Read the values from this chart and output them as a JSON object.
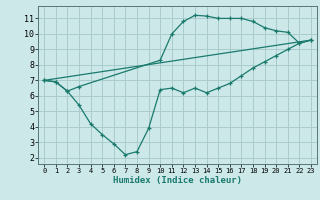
{
  "xlabel": "Humidex (Indice chaleur)",
  "bg_color": "#cce8e8",
  "grid_color": "#aacccc",
  "line_color": "#1a7a6e",
  "xlim": [
    -0.5,
    23.5
  ],
  "ylim": [
    1.6,
    11.8
  ],
  "xticks": [
    0,
    1,
    2,
    3,
    4,
    5,
    6,
    7,
    8,
    9,
    10,
    11,
    12,
    13,
    14,
    15,
    16,
    17,
    18,
    19,
    20,
    21,
    22,
    23
  ],
  "yticks": [
    2,
    3,
    4,
    5,
    6,
    7,
    8,
    9,
    10,
    11
  ],
  "line1_x": [
    0,
    1,
    2,
    3,
    10,
    11,
    12,
    13,
    14,
    15,
    16,
    17,
    18,
    19,
    20,
    21,
    22,
    23
  ],
  "line1_y": [
    7.0,
    6.9,
    6.3,
    6.6,
    8.3,
    10.0,
    10.8,
    11.2,
    11.15,
    11.0,
    11.0,
    11.0,
    10.8,
    10.4,
    10.2,
    10.1,
    9.4,
    9.6
  ],
  "line2_x": [
    0,
    23
  ],
  "line2_y": [
    7.0,
    9.6
  ],
  "line3_x": [
    0,
    1,
    2,
    3,
    4,
    5,
    6,
    7,
    8,
    9,
    10,
    11,
    12,
    13,
    14,
    15,
    16,
    17,
    18,
    19,
    20,
    21,
    22,
    23
  ],
  "line3_y": [
    7.0,
    6.9,
    6.3,
    5.4,
    4.2,
    3.5,
    2.9,
    2.2,
    2.4,
    3.9,
    6.4,
    6.5,
    6.2,
    6.5,
    6.2,
    6.5,
    6.8,
    7.3,
    7.8,
    8.2,
    8.6,
    9.0,
    9.4,
    9.6
  ]
}
